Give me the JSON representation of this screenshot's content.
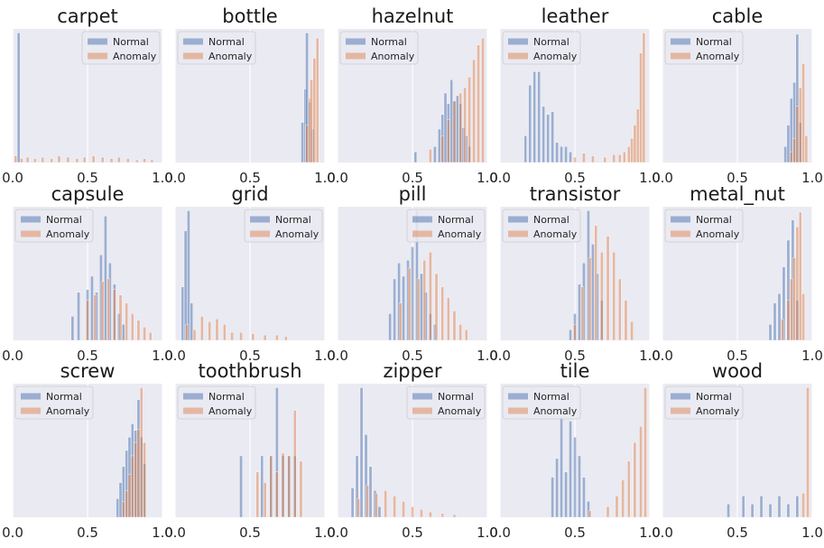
{
  "figure": {
    "x_tick_labels": [
      "0.0",
      "0.5",
      "1.0"
    ],
    "colors": {
      "normal": "#4c72b0",
      "anomaly": "#dd8452",
      "panel_bg": "#eaeaf2",
      "grid": "#ffffff"
    }
  },
  "chart_data": [
    {
      "type": "bar",
      "title": "carpet",
      "xlim": [
        0,
        1
      ],
      "ylim": [
        0,
        1
      ],
      "legend_position": "top-right",
      "series": [
        {
          "name": "Normal",
          "bins": [
            0.04
          ],
          "heights": [
            0.97
          ]
        },
        {
          "name": "Anomaly",
          "bins": [
            0.02,
            0.06,
            0.1,
            0.15,
            0.2,
            0.26,
            0.31,
            0.37,
            0.43,
            0.48,
            0.54,
            0.6,
            0.66,
            0.71,
            0.77,
            0.83,
            0.88,
            0.93
          ],
          "heights": [
            0.05,
            0.03,
            0.04,
            0.03,
            0.04,
            0.03,
            0.05,
            0.04,
            0.03,
            0.04,
            0.05,
            0.04,
            0.03,
            0.04,
            0.03,
            0.02,
            0.03,
            0.02
          ]
        }
      ]
    },
    {
      "type": "bar",
      "title": "bottle",
      "xlim": [
        0,
        1
      ],
      "ylim": [
        0,
        1
      ],
      "legend_position": "top-left",
      "series": [
        {
          "name": "Normal",
          "bins": [
            0.85,
            0.87,
            0.88,
            0.9,
            0.92
          ],
          "heights": [
            0.3,
            0.55,
            0.97,
            0.45,
            0.25
          ]
        },
        {
          "name": "Anomaly",
          "bins": [
            0.88,
            0.9,
            0.91,
            0.93,
            0.95
          ],
          "heights": [
            0.28,
            0.48,
            0.62,
            0.78,
            0.93
          ]
        }
      ]
    },
    {
      "type": "bar",
      "title": "hazelnut",
      "xlim": [
        0,
        1
      ],
      "ylim": [
        0,
        1
      ],
      "legend_position": "top-left",
      "series": [
        {
          "name": "Normal",
          "bins": [
            0.52,
            0.65,
            0.68,
            0.7,
            0.72,
            0.74,
            0.76,
            0.78,
            0.8,
            0.82,
            0.84,
            0.86,
            0.88
          ],
          "heights": [
            0.08,
            0.12,
            0.25,
            0.36,
            0.52,
            0.44,
            0.62,
            0.46,
            0.5,
            0.44,
            0.26,
            0.2,
            0.12
          ]
        },
        {
          "name": "Anomaly",
          "bins": [
            0.62,
            0.7,
            0.74,
            0.78,
            0.82,
            0.85,
            0.88,
            0.91,
            0.94,
            0.97
          ],
          "heights": [
            0.1,
            0.2,
            0.32,
            0.46,
            0.52,
            0.56,
            0.64,
            0.77,
            0.88,
            0.93
          ]
        }
      ]
    },
    {
      "type": "bar",
      "title": "leather",
      "xlim": [
        0,
        1
      ],
      "ylim": [
        0,
        1
      ],
      "legend_position": "top-left",
      "series": [
        {
          "name": "Normal",
          "bins": [
            0.17,
            0.2,
            0.23,
            0.26,
            0.29,
            0.32,
            0.35,
            0.38,
            0.41,
            0.44,
            0.47
          ],
          "heights": [
            0.2,
            0.58,
            0.68,
            0.68,
            0.42,
            0.36,
            0.38,
            0.15,
            0.12,
            0.12,
            0.08
          ]
        },
        {
          "name": "Anomaly",
          "bins": [
            0.5,
            0.56,
            0.62,
            0.7,
            0.76,
            0.8,
            0.83,
            0.86,
            0.88,
            0.9,
            0.92,
            0.94,
            0.96
          ],
          "heights": [
            0.04,
            0.07,
            0.05,
            0.04,
            0.06,
            0.06,
            0.08,
            0.12,
            0.18,
            0.28,
            0.4,
            0.82,
            0.97
          ]
        }
      ]
    },
    {
      "type": "bar",
      "title": "cable",
      "xlim": [
        0,
        1
      ],
      "ylim": [
        0,
        1
      ],
      "legend_position": "top-left",
      "series": [
        {
          "name": "Normal",
          "bins": [
            0.82,
            0.84,
            0.86,
            0.88,
            0.9,
            0.92
          ],
          "heights": [
            0.12,
            0.28,
            0.48,
            0.6,
            0.96,
            0.3
          ]
        },
        {
          "name": "Anomaly",
          "bins": [
            0.86,
            0.88,
            0.9,
            0.92,
            0.94,
            0.96
          ],
          "heights": [
            0.08,
            0.18,
            0.42,
            0.56,
            0.74,
            0.2
          ]
        }
      ]
    },
    {
      "type": "bar",
      "title": "capsule",
      "xlim": [
        0,
        1
      ],
      "ylim": [
        0,
        1
      ],
      "legend_position": "top-left",
      "series": [
        {
          "name": "Normal",
          "bins": [
            0.4,
            0.44,
            0.5,
            0.53,
            0.56,
            0.59,
            0.62,
            0.65,
            0.68,
            0.71,
            0.74
          ],
          "heights": [
            0.18,
            0.36,
            0.38,
            0.48,
            0.36,
            0.64,
            0.93,
            0.58,
            0.42,
            0.2,
            0.12
          ]
        },
        {
          "name": "Anomaly",
          "bins": [
            0.5,
            0.55,
            0.6,
            0.64,
            0.68,
            0.72,
            0.76,
            0.8,
            0.84,
            0.88,
            0.92
          ],
          "heights": [
            0.3,
            0.34,
            0.44,
            0.46,
            0.38,
            0.34,
            0.28,
            0.2,
            0.15,
            0.1,
            0.06
          ]
        }
      ]
    },
    {
      "type": "bar",
      "title": "grid",
      "xlim": [
        0,
        1
      ],
      "ylim": [
        0,
        1
      ],
      "legend_position": "top-right",
      "series": [
        {
          "name": "Normal",
          "bins": [
            0.05,
            0.07,
            0.09,
            0.11
          ],
          "heights": [
            0.4,
            0.82,
            0.97,
            0.28
          ]
        },
        {
          "name": "Anomaly",
          "bins": [
            0.08,
            0.13,
            0.18,
            0.23,
            0.28,
            0.33,
            0.38,
            0.44,
            0.52,
            0.6,
            0.68,
            0.74
          ],
          "heights": [
            0.12,
            0.08,
            0.18,
            0.14,
            0.16,
            0.12,
            0.06,
            0.06,
            0.05,
            0.04,
            0.04,
            0.03
          ]
        }
      ]
    },
    {
      "type": "bar",
      "title": "pill",
      "xlim": [
        0,
        1
      ],
      "ylim": [
        0,
        1
      ],
      "legend_position": "top-right",
      "series": [
        {
          "name": "Normal",
          "bins": [
            0.35,
            0.38,
            0.41,
            0.44,
            0.47,
            0.5,
            0.53,
            0.56,
            0.59,
            0.62,
            0.65
          ],
          "heights": [
            0.2,
            0.46,
            0.58,
            0.48,
            0.6,
            0.7,
            0.97,
            0.5,
            0.36,
            0.2,
            0.12
          ]
        },
        {
          "name": "Anomaly",
          "bins": [
            0.42,
            0.48,
            0.54,
            0.58,
            0.62,
            0.66,
            0.7,
            0.74,
            0.78,
            0.82,
            0.86
          ],
          "heights": [
            0.28,
            0.54,
            0.46,
            0.6,
            0.66,
            0.5,
            0.4,
            0.32,
            0.22,
            0.12,
            0.08
          ]
        }
      ]
    },
    {
      "type": "bar",
      "title": "transistor",
      "xlim": [
        0,
        1
      ],
      "ylim": [
        0,
        1
      ],
      "legend_position": "top-left",
      "series": [
        {
          "name": "Normal",
          "bins": [
            0.47,
            0.5,
            0.53,
            0.56,
            0.59,
            0.62,
            0.65,
            0.68
          ],
          "heights": [
            0.08,
            0.2,
            0.42,
            0.58,
            0.97,
            0.72,
            0.5,
            0.3
          ]
        },
        {
          "name": "Anomaly",
          "bins": [
            0.5,
            0.55,
            0.6,
            0.64,
            0.68,
            0.72,
            0.76,
            0.8,
            0.84,
            0.88
          ],
          "heights": [
            0.12,
            0.4,
            0.62,
            0.86,
            0.66,
            0.78,
            0.66,
            0.46,
            0.3,
            0.14
          ]
        }
      ]
    },
    {
      "type": "bar",
      "title": "metal_nut",
      "xlim": [
        0,
        1
      ],
      "ylim": [
        0,
        1
      ],
      "legend_position": "top-left",
      "series": [
        {
          "name": "Normal",
          "bins": [
            0.72,
            0.75,
            0.78,
            0.81,
            0.84,
            0.87,
            0.9
          ],
          "heights": [
            0.12,
            0.28,
            0.35,
            0.55,
            0.75,
            0.9,
            0.3
          ]
        },
        {
          "name": "Anomaly",
          "bins": [
            0.8,
            0.84,
            0.86,
            0.88,
            0.9,
            0.92,
            0.94
          ],
          "heights": [
            0.16,
            0.3,
            0.46,
            0.62,
            0.85,
            0.96,
            0.35
          ]
        }
      ]
    },
    {
      "type": "bar",
      "title": "screw",
      "xlim": [
        0,
        1
      ],
      "ylim": [
        0,
        1
      ],
      "legend_position": "top-left",
      "series": [
        {
          "name": "Normal",
          "bins": [
            0.7,
            0.72,
            0.74,
            0.76,
            0.78,
            0.8,
            0.82,
            0.84,
            0.86,
            0.88
          ],
          "heights": [
            0.14,
            0.26,
            0.38,
            0.5,
            0.6,
            0.7,
            0.65,
            0.88,
            0.6,
            0.4
          ]
        },
        {
          "name": "Anomaly",
          "bins": [
            0.74,
            0.76,
            0.78,
            0.8,
            0.82,
            0.84,
            0.86,
            0.88
          ],
          "heights": [
            0.12,
            0.2,
            0.32,
            0.46,
            0.56,
            0.66,
            0.97,
            0.56
          ]
        }
      ]
    },
    {
      "type": "bar",
      "title": "toothbrush",
      "xlim": [
        0,
        1
      ],
      "ylim": [
        0,
        1
      ],
      "legend_position": "top-left",
      "series": [
        {
          "name": "Normal",
          "bins": [
            0.44,
            0.58,
            0.64,
            0.68,
            0.72,
            0.76,
            0.8
          ],
          "heights": [
            0.46,
            0.46,
            0.46,
            0.97,
            0.46,
            0.46,
            0.46
          ]
        },
        {
          "name": "Anomaly",
          "bins": [
            0.55,
            0.6,
            0.64,
            0.68,
            0.72,
            0.76,
            0.8,
            0.84
          ],
          "heights": [
            0.34,
            0.26,
            0.46,
            0.34,
            0.48,
            0.46,
            0.8,
            0.42
          ]
        }
      ]
    },
    {
      "type": "bar",
      "title": "zipper",
      "xlim": [
        0,
        1
      ],
      "ylim": [
        0,
        1
      ],
      "legend_position": "top-right",
      "series": [
        {
          "name": "Normal",
          "bins": [
            0.1,
            0.13,
            0.16,
            0.19,
            0.22,
            0.25,
            0.28
          ],
          "heights": [
            0.22,
            0.46,
            0.97,
            0.62,
            0.38,
            0.2,
            0.08
          ]
        },
        {
          "name": "Anomaly",
          "bins": [
            0.14,
            0.2,
            0.26,
            0.32,
            0.38,
            0.44,
            0.5,
            0.56,
            0.62,
            0.7,
            0.78
          ],
          "heights": [
            0.14,
            0.24,
            0.18,
            0.2,
            0.16,
            0.12,
            0.08,
            0.06,
            0.04,
            0.03,
            0.02
          ]
        }
      ]
    },
    {
      "type": "bar",
      "title": "tile",
      "xlim": [
        0,
        1
      ],
      "ylim": [
        0,
        1
      ],
      "legend_position": "top-left",
      "series": [
        {
          "name": "Normal",
          "bins": [
            0.35,
            0.38,
            0.41,
            0.44,
            0.47,
            0.5,
            0.53,
            0.56,
            0.59
          ],
          "heights": [
            0.3,
            0.44,
            0.75,
            0.34,
            0.72,
            0.6,
            0.46,
            0.3,
            0.12
          ]
        },
        {
          "name": "Anomaly",
          "bins": [
            0.6,
            0.72,
            0.78,
            0.82,
            0.86,
            0.9,
            0.94,
            0.97
          ],
          "heights": [
            0.05,
            0.08,
            0.16,
            0.28,
            0.42,
            0.56,
            0.68,
            0.97
          ]
        }
      ]
    },
    {
      "type": "bar",
      "title": "wood",
      "xlim": [
        0,
        1
      ],
      "ylim": [
        0,
        1
      ],
      "legend_position": "top-left",
      "series": [
        {
          "name": "Normal",
          "bins": [
            0.44,
            0.54,
            0.6,
            0.66,
            0.72,
            0.78,
            0.84,
            0.9
          ],
          "heights": [
            0.1,
            0.16,
            0.1,
            0.16,
            0.1,
            0.16,
            0.1,
            0.16
          ]
        },
        {
          "name": "Anomaly",
          "bins": [
            0.94,
            0.97
          ],
          "heights": [
            0.18,
            0.97
          ]
        }
      ]
    }
  ]
}
